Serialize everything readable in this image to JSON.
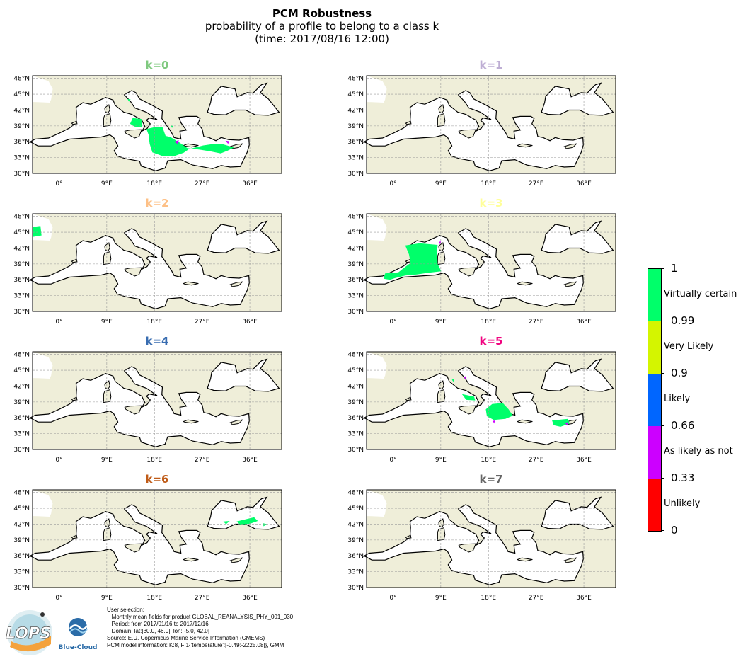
{
  "header": {
    "title": "PCM Robustness",
    "subtitle": "probability of a profile to belong to a class k",
    "time": "(time: 2017/08/16 12:00)"
  },
  "axes": {
    "lat_ticks": [
      "48°N",
      "45°N",
      "42°N",
      "39°N",
      "36°N",
      "33°N",
      "30°N"
    ],
    "lon_ticks": [
      "0°",
      "9°E",
      "18°E",
      "27°E",
      "36°E"
    ]
  },
  "panels": [
    {
      "label": "k=0",
      "color": "#7fc97f"
    },
    {
      "label": "k=1",
      "color": "#beaed4"
    },
    {
      "label": "k=2",
      "color": "#fdc086"
    },
    {
      "label": "k=3",
      "color": "#ffff99"
    },
    {
      "label": "k=4",
      "color": "#386cb0"
    },
    {
      "label": "k=5",
      "color": "#f0027f"
    },
    {
      "label": "k=6",
      "color": "#bf5b17"
    },
    {
      "label": "k=7",
      "color": "#666666"
    }
  ],
  "colorbar": {
    "ticks": [
      "1",
      "0.99",
      "0.9",
      "0.66",
      "0.33",
      "0"
    ],
    "categories": [
      {
        "label": "Virtually certain",
        "color": "#00ff6a"
      },
      {
        "label": "Very Likely",
        "color": "#d4f500"
      },
      {
        "label": "Likely",
        "color": "#0066ff"
      },
      {
        "label": "As likely as not",
        "color": "#cc00ff"
      },
      {
        "label": "Unlikely",
        "color": "#ff0000"
      }
    ]
  },
  "footer": {
    "lines": [
      "User selection:",
      "   Monthly mean fields for product GLOBAL_REANALYSIS_PHY_001_030",
      "   Period: from 2017/01/16 to 2017/12/16",
      "   Domain: lat:[30.0, 46.0], lon:[-5.0, 42.0]",
      "Source: E.U. Copernicus Marine Service Information (CMEMS)",
      "PCM model information: K:8, F:1{'temperature':[-0.49:-2225.08]}, GMM"
    ]
  },
  "logos": {
    "lops": "LOPS",
    "bluecloud": "Blue-Cloud"
  }
}
